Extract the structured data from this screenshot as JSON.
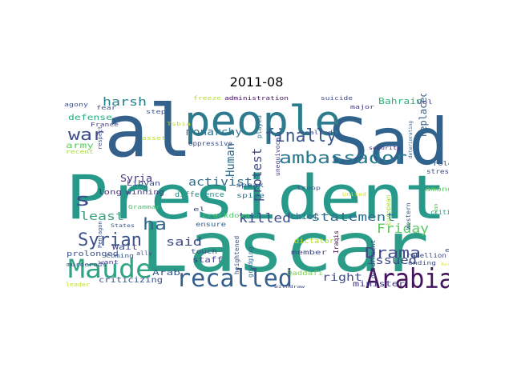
{
  "title": "2011-08",
  "words": [
    {
      "text": "President",
      "color": "#26998a"
    },
    {
      "text": "Lascar",
      "color": "#2a9c87"
    },
    {
      "text": "al",
      "color": "#33618c"
    },
    {
      "text": "Sad",
      "color": "#30628e"
    },
    {
      "text": "people",
      "color": "#2e7b8e"
    },
    {
      "text": "Arabia",
      "color": "#45135c"
    },
    {
      "text": "recalled",
      "color": "#345f8d"
    },
    {
      "text": "Maude",
      "color": "#2fa584"
    },
    {
      "text": "ambassador",
      "color": "#2a798f"
    },
    {
      "text": "finally",
      "color": "#3a5a8c"
    },
    {
      "text": "Syrian",
      "color": "#3b528b"
    },
    {
      "text": "war",
      "color": "#3d4d8a"
    },
    {
      "text": "s",
      "color": "#3f4889"
    },
    {
      "text": "ha",
      "color": "#31668e"
    },
    {
      "text": "Drama",
      "color": "#3f4788"
    },
    {
      "text": "killed",
      "color": "#3c4f8a"
    },
    {
      "text": "statement",
      "color": "#2e6f8e"
    },
    {
      "text": "Friday",
      "color": "#5cc863"
    },
    {
      "text": "issued",
      "color": "#3d4b8a"
    },
    {
      "text": "least",
      "color": "#3e9e7f"
    },
    {
      "text": "harsh",
      "color": "#277f8e"
    },
    {
      "text": "activist",
      "color": "#346d8d"
    },
    {
      "text": "Human",
      "color": "#2f6c8e"
    },
    {
      "text": "protest",
      "color": "#3f4a8a"
    },
    {
      "text": "right",
      "color": "#3e4c8a"
    },
    {
      "text": "said",
      "color": "#3e4a89"
    },
    {
      "text": "monarchy",
      "color": "#2b758e"
    },
    {
      "text": "Syria",
      "color": "#46337e"
    },
    {
      "text": "replaced",
      "color": "#33628d"
    },
    {
      "text": "criticizing",
      "color": "#3b518b"
    },
    {
      "text": "minister",
      "color": "#424086"
    },
    {
      "text": "chief",
      "color": "#2d708e"
    },
    {
      "text": "Bahrain",
      "color": "#2fb47c"
    },
    {
      "text": "defense",
      "color": "#29af7f"
    },
    {
      "text": "army",
      "color": "#5ec962"
    },
    {
      "text": "Arab",
      "color": "#38598c"
    },
    {
      "text": "staff",
      "color": "#424086"
    },
    {
      "text": "prolonged",
      "color": "#3a548c"
    },
    {
      "text": "Wait",
      "color": "#3e4989"
    },
    {
      "text": "long",
      "color": "#46327e"
    },
    {
      "text": "winning",
      "color": "#443a83"
    },
    {
      "text": "Libyan",
      "color": "#3d4e8a"
    },
    {
      "text": "difference",
      "color": "#21918c"
    },
    {
      "text": "speak",
      "color": "#38588c"
    },
    {
      "text": "spike",
      "color": "#2c728e"
    },
    {
      "text": "touch",
      "color": "#3e4a89"
    },
    {
      "text": "ensure",
      "color": "#33638d"
    },
    {
      "text": "crackdown",
      "color": "#4ac16d"
    },
    {
      "text": "heightened",
      "color": "#3b528b"
    },
    {
      "text": "grudging",
      "color": "#31688e"
    },
    {
      "text": "member",
      "color": "#3e4a89"
    },
    {
      "text": "dictator",
      "color": "#b5de2b"
    },
    {
      "text": "Qaddafi",
      "color": "#7ad151"
    },
    {
      "text": "government",
      "color": "#414487"
    },
    {
      "text": "Iraqis",
      "color": "#440154"
    },
    {
      "text": "Western",
      "color": "#3a548c"
    },
    {
      "text": "European",
      "color": "#a0da39"
    },
    {
      "text": "among",
      "color": "#63cb5f"
    },
    {
      "text": "role",
      "color": "#3b528b"
    },
    {
      "text": "stressed",
      "color": "#3d4e8a"
    },
    {
      "text": "critical",
      "color": "#20a486"
    },
    {
      "text": "rebellion",
      "color": "#3e4989"
    },
    {
      "text": "ending",
      "color": "#3e4c8a"
    },
    {
      "text": "end",
      "color": "#3d4e8a"
    },
    {
      "text": "unequivocal",
      "color": "#424086"
    },
    {
      "text": "called",
      "color": "#3c508b"
    },
    {
      "text": "played",
      "color": "#2c738e"
    },
    {
      "text": "oppressive",
      "color": "#3d4e8a"
    },
    {
      "text": "administration",
      "color": "#471063"
    },
    {
      "text": "freeze",
      "color": "#b5de2b"
    },
    {
      "text": "suicide",
      "color": "#3e4a89"
    },
    {
      "text": "major",
      "color": "#463480"
    },
    {
      "text": "Vol",
      "color": "#433e85"
    },
    {
      "text": "step",
      "color": "#3b528b"
    },
    {
      "text": "fear",
      "color": "#3c4f8a"
    },
    {
      "text": "agony",
      "color": "#3a548c"
    },
    {
      "text": "France",
      "color": "#414487"
    },
    {
      "text": "recent",
      "color": "#a8db34"
    },
    {
      "text": "respect",
      "color": "#3b518b"
    },
    {
      "text": "Tsbia",
      "color": "#b8de29"
    },
    {
      "text": "asset",
      "color": "#b8de29"
    },
    {
      "text": "security",
      "color": "#472f7d"
    },
    {
      "text": "deteriorating",
      "color": "#34618d"
    },
    {
      "text": "el",
      "color": "#3e4989"
    },
    {
      "text": "troop",
      "color": "#3a548c"
    },
    {
      "text": "United",
      "color": "#d8e219"
    },
    {
      "text": "Pentagon",
      "color": "#3c508b"
    },
    {
      "text": "want",
      "color": "#433e85"
    },
    {
      "text": "Grammar",
      "color": "#4ac16d"
    },
    {
      "text": "States",
      "color": "#3a548c"
    },
    {
      "text": "coming",
      "color": "#3b528b"
    },
    {
      "text": "ally",
      "color": "#3b528b"
    },
    {
      "text": "murderous",
      "color": "#3b528b"
    },
    {
      "text": "leader",
      "color": "#c8e020"
    },
    {
      "text": "withdraw",
      "color": "#3e4c8a"
    },
    {
      "text": "Han",
      "color": "#5ec962"
    },
    {
      "text": "Assad",
      "color": "#e5e419"
    }
  ]
}
